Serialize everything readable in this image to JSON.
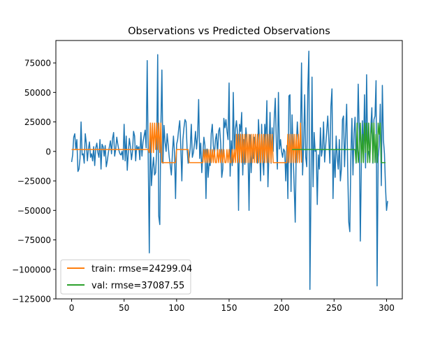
{
  "chart_data": {
    "type": "line",
    "title": "Observations vs Predicted Observations",
    "xlabel": "",
    "ylabel": "",
    "xlim": [
      -15,
      315
    ],
    "ylim": [
      -125000,
      94000
    ],
    "xticks": [
      0,
      50,
      100,
      150,
      200,
      250,
      300
    ],
    "yticks": [
      -125000,
      -100000,
      -75000,
      -50000,
      -25000,
      0,
      25000,
      50000,
      75000
    ],
    "grid": false,
    "legend": {
      "placement": "lower-left"
    },
    "series": [
      {
        "role": "observations",
        "color": "#1f77b4",
        "x_start": 0,
        "x_step": 1,
        "values": [
          -9000,
          -3000,
          12000,
          15000,
          2000,
          10000,
          -17000,
          -15000,
          -6000,
          25000,
          -3000,
          -2000,
          -10000,
          15000,
          7000,
          -8000,
          2000,
          8000,
          -5000,
          -2000,
          -8000,
          4000,
          -12000,
          3000,
          7000,
          -1000,
          -5000,
          10000,
          -15000,
          6000,
          4000,
          -4000,
          5000,
          -13000,
          -8000,
          -1000,
          4000,
          9000,
          -2000,
          11000,
          16000,
          -4000,
          2000,
          12000,
          6000,
          1000,
          -2000,
          -3000,
          0,
          -7000,
          23000,
          -8000,
          13000,
          -16000,
          -1000,
          11000,
          4000,
          -7000,
          0,
          17000,
          13000,
          -8000,
          5000,
          2000,
          4000,
          -7000,
          16000,
          -4000,
          8000,
          13000,
          18000,
          3000,
          77000,
          -8000,
          -86000,
          24000,
          -29000,
          -15000,
          -5000,
          -20000,
          -18000,
          0,
          82000,
          -55000,
          -62000,
          21000,
          69000,
          -10000,
          22000,
          8000,
          0,
          15000,
          5000,
          -5000,
          -12000,
          -20000,
          -2000,
          13000,
          -1000,
          -40000,
          6000,
          10000,
          19000,
          26000,
          4000,
          -25000,
          10000,
          20000,
          27000,
          25000,
          2000,
          -10000,
          -5000,
          3000,
          23000,
          -5000,
          -1000,
          6000,
          17000,
          2000,
          13000,
          44000,
          -6000,
          7000,
          -18000,
          -2000,
          12000,
          5000,
          -40000,
          2000,
          -22000,
          -10000,
          -12000,
          15000,
          23000,
          5000,
          -4000,
          10000,
          15000,
          -3000,
          17000,
          20000,
          7000,
          -22000,
          -15000,
          28000,
          20000,
          27000,
          17000,
          10000,
          58000,
          -21000,
          9000,
          -12000,
          50000,
          -2000,
          19000,
          26000,
          16000,
          -50000,
          23000,
          17000,
          33000,
          -20000,
          10000,
          -11000,
          20000,
          10000,
          0,
          -50000,
          14000,
          -18000,
          1000,
          -6000,
          12000,
          5000,
          3000,
          -10000,
          27000,
          8000,
          -25000,
          23000,
          -6000,
          -20000,
          23000,
          10000,
          43000,
          -30000,
          0,
          33000,
          -10000,
          20000,
          0,
          28000,
          45000,
          8000,
          -15000,
          50000,
          2000,
          10000,
          0,
          -5000,
          2000,
          0,
          -25000,
          5000,
          -40000,
          47000,
          48000,
          -34000,
          31000,
          -1000,
          -30000,
          -60000,
          4000,
          25000,
          8000,
          -9000,
          15000,
          75000,
          -20000,
          5000,
          48000,
          -5000,
          -13000,
          53000,
          85000,
          -117000,
          -31000,
          63000,
          -30000,
          16000,
          0,
          1000,
          -45000,
          -3000,
          -15000,
          20000,
          -4000,
          2000,
          25000,
          -9000,
          5000,
          17000,
          30000,
          10000,
          -10000,
          38000,
          53000,
          -40000,
          1000,
          -22000,
          13000,
          -5000,
          -15000,
          10000,
          -25000,
          -15000,
          27000,
          30000,
          -13000,
          15000,
          40000,
          -15000,
          -60000,
          -68000,
          -5000,
          28000,
          -20000,
          15000,
          29000,
          -10000,
          5000,
          57000,
          17000,
          -76000,
          -10000,
          26000,
          -5000,
          48000,
          -14000,
          65000,
          -1000,
          0,
          -8000,
          20000,
          37000,
          -10000,
          27000,
          30000,
          60000,
          -114000,
          -5000,
          5000,
          40000,
          -29000,
          56000,
          10000,
          -2000,
          -30000,
          -50000,
          -42000
        ]
      },
      {
        "name": "train: rmse=24299.04",
        "color": "#ff7f0e",
        "x_start": 0,
        "x_step": 1,
        "values": [
          1600,
          1600,
          1600,
          1600,
          1600,
          1600,
          1600,
          1600,
          1600,
          1600,
          1600,
          1600,
          1600,
          1600,
          1600,
          1600,
          1600,
          1600,
          1600,
          1600,
          1600,
          1600,
          1600,
          1600,
          1600,
          1600,
          1600,
          1600,
          1600,
          1600,
          1600,
          1600,
          1600,
          1600,
          1600,
          1600,
          1600,
          1600,
          1600,
          1600,
          1600,
          1600,
          1600,
          1600,
          1600,
          1600,
          1600,
          1600,
          1600,
          1600,
          1600,
          1600,
          1600,
          1600,
          1600,
          1600,
          1600,
          1600,
          1600,
          1600,
          1600,
          1600,
          1600,
          1600,
          1600,
          1600,
          1600,
          1600,
          1600,
          1600,
          1600,
          1600,
          1600,
          1600,
          -1000,
          24000,
          -1000,
          24000,
          -1000,
          24000,
          1600,
          24000,
          1600,
          24000,
          -1000,
          24000,
          -9500,
          -9500,
          -9500,
          -9500,
          -9500,
          -9500,
          -9500,
          -9500,
          -9500,
          -9500,
          -9500,
          -9500,
          -9500,
          -9500,
          1600,
          1600,
          1600,
          1600,
          1600,
          1600,
          1600,
          1600,
          1600,
          1600,
          1600,
          1600,
          -9500,
          -9500,
          -9500,
          -9500,
          -9500,
          -9500,
          -9500,
          -9500,
          -9500,
          -9500,
          -9500,
          -9500,
          -9500,
          -9500,
          1600,
          -9500,
          1600,
          -9500,
          1600,
          -9500,
          1600,
          -9500,
          1600,
          -9500,
          1600,
          -9500,
          -9500,
          1600,
          -9500,
          1600,
          -9500,
          1600,
          -9500,
          1600,
          -9500,
          -9500,
          1600,
          -9500,
          1600,
          -9500,
          -9500,
          1600,
          -9500,
          1600,
          -9500,
          14500,
          -9500,
          14500,
          -9500,
          14500,
          -9500,
          14500,
          -9500,
          14500,
          -9500,
          14500,
          -9500,
          14500,
          -9500,
          14500,
          -9500,
          14500,
          -9500,
          14500,
          -9500,
          14500,
          -9500,
          14500,
          -9500,
          14500,
          -9500,
          14500,
          -9500,
          14500,
          -9500,
          14500,
          -9500,
          14500,
          -9500,
          14500,
          -9500,
          -9500,
          -9500,
          -9500,
          -9500,
          -9500,
          -9500,
          -9500,
          -9500,
          -9500,
          -9500,
          -9500,
          -9500,
          -9500,
          14500,
          -9500,
          14500,
          -9500,
          14500,
          -9500,
          14500,
          -9500,
          14500,
          -9500,
          14500,
          -9500,
          24000,
          -9500
        ]
      },
      {
        "name": "val: rmse=37087.55",
        "color": "#2ca02c",
        "x_start": 210,
        "x_step": 1,
        "values": [
          1600,
          1600,
          1600,
          1600,
          1600,
          1600,
          1600,
          1600,
          1600,
          1600,
          1600,
          1600,
          1600,
          1600,
          1600,
          1600,
          1600,
          1600,
          1600,
          1600,
          1600,
          1600,
          1600,
          1600,
          1600,
          1600,
          1600,
          1600,
          1600,
          1600,
          1600,
          1600,
          1600,
          1600,
          1600,
          1600,
          1600,
          1600,
          1600,
          1600,
          1600,
          1600,
          1600,
          1600,
          1600,
          1600,
          1600,
          1600,
          1600,
          1600,
          1600,
          1600,
          1600,
          1600,
          1600,
          1600,
          1600,
          1600,
          1600,
          1600,
          1600,
          -9500,
          24000,
          -9500,
          1600,
          24000,
          -9500,
          14500,
          -9500,
          24000,
          -1000,
          24000,
          -9500,
          24000,
          -9500,
          14500,
          24000,
          -9500,
          24000,
          -9500,
          14500,
          -9500,
          24000,
          14500,
          24000,
          -9500,
          -9500,
          -9500,
          -9500,
          -9500
        ]
      }
    ]
  }
}
